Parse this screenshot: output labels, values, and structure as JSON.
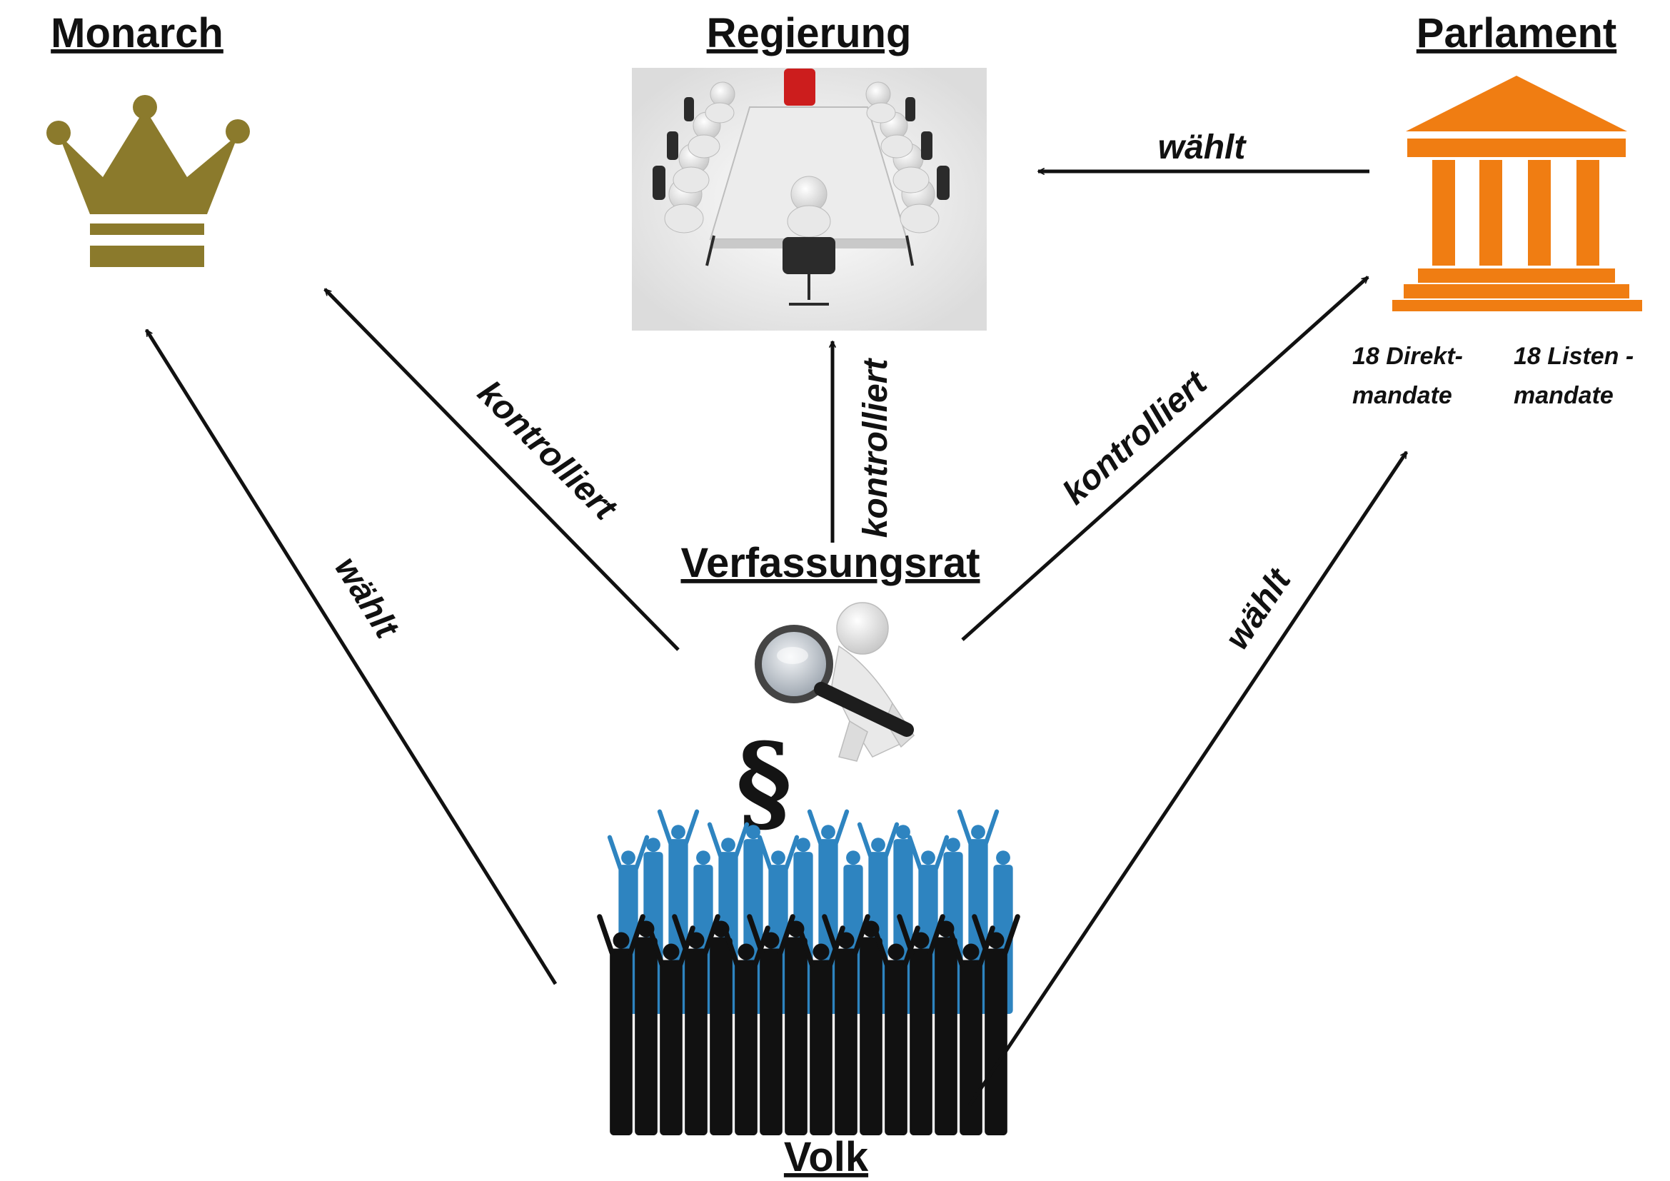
{
  "diagram": {
    "nodes": {
      "monarch": {
        "title": "Monarch",
        "icon": "crown-icon"
      },
      "regierung": {
        "title": "Regierung",
        "icon": "meeting-table-icon"
      },
      "parlament": {
        "title": "Parlament",
        "icon": "parliament-building-icon",
        "notes": {
          "direkt": [
            "18 Direkt-",
            "mandate"
          ],
          "listen": [
            "18 Listen -",
            "mandate"
          ]
        }
      },
      "verfassungsrat": {
        "title": "Verfassungsrat",
        "icon": "magnifier-paragraph-icon"
      },
      "volk": {
        "title": "Volk",
        "icon": "crowd-icon"
      }
    },
    "edges": [
      {
        "from": "Parlament",
        "to": "Regierung",
        "label": "wählt"
      },
      {
        "from": "Verfassungsrat",
        "to": "Monarch",
        "label": "kontrolliert"
      },
      {
        "from": "Verfassungsrat",
        "to": "Regierung",
        "label": "kontrolliert"
      },
      {
        "from": "Verfassungsrat",
        "to": "Parlament",
        "label": "kontrolliert"
      },
      {
        "from": "Volk",
        "to": "Monarch",
        "label": "wählt"
      },
      {
        "from": "Volk",
        "to": "Parlament",
        "label": "wählt"
      }
    ],
    "colors": {
      "crown": "#8b7a2c",
      "parliament": "#f07d12",
      "crowd_front": "#111111",
      "crowd_back": "#2e84c0",
      "chair_red": "#cc1d1d",
      "arrow": "#111111"
    }
  }
}
